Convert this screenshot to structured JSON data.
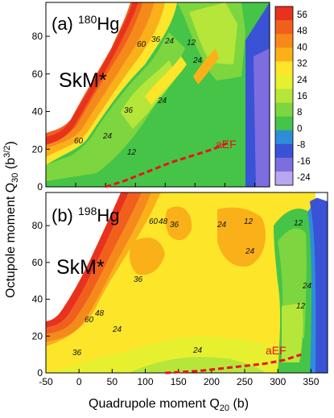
{
  "chart_data": {
    "type": "heatmap",
    "xlabel": "Quadrupole moment  Q20 (b)",
    "ylabel": "Octupole moment  Q30 (b3/2)",
    "x_ticks": [
      "-50",
      "0",
      "50",
      "100",
      "150",
      "200",
      "250",
      "300",
      "350"
    ],
    "xlim": [
      -50,
      375
    ],
    "colorbar": {
      "ticks": [
        "56",
        "48",
        "40",
        "32",
        "24",
        "16",
        "8",
        "0",
        "-8",
        "-16",
        "-24"
      ],
      "colors": [
        "#e8321e",
        "#f0601c",
        "#f58a1a",
        "#fab018",
        "#fde52a",
        "#e7f02f",
        "#b6e63a",
        "#7dd63f",
        "#45c447",
        "#2e8dd8",
        "#3a52d6",
        "#7d6ee0",
        "#b9a6f0"
      ]
    },
    "panels": [
      {
        "id": "a",
        "label_prefix": "(a) ",
        "mass": "180",
        "element": "Hg",
        "model": "SkM*",
        "y_ticks": [
          "0",
          "20",
          "40",
          "60",
          "80"
        ],
        "ylim": [
          0,
          98
        ],
        "contour_labels": [
          "60",
          "36",
          "24",
          "12",
          "24",
          "36",
          "24",
          "60",
          "24",
          "12"
        ],
        "path_label": "aEF",
        "path": {
          "x": [
            50,
            80,
            120,
            160,
            200,
            230,
            260
          ],
          "y": [
            0,
            3,
            8,
            13,
            17,
            20,
            24
          ]
        }
      },
      {
        "id": "b",
        "label_prefix": "(b) ",
        "mass": "198",
        "element": "Hg",
        "model": "SkM*",
        "y_ticks": [
          "0",
          "20",
          "40",
          "60",
          "80"
        ],
        "ylim": [
          0,
          98
        ],
        "contour_labels": [
          "60",
          "48",
          "36",
          "24",
          "12",
          "12",
          "24",
          "36",
          "60",
          "48",
          "24",
          "24",
          "36",
          "24",
          "12"
        ],
        "path_label": "aEF",
        "path": {
          "x": [
            130,
            180,
            230,
            280,
            310,
            335
          ],
          "y": [
            0,
            1,
            3,
            5,
            7,
            10
          ]
        }
      }
    ],
    "ylabel_main": "Octupole moment",
    "ylabel_sym": "Q",
    "ylabel_sub": "30",
    "ylabel_unit_pre": " (b",
    "ylabel_unit_sup": "3/2",
    "ylabel_unit_post": ")",
    "xlabel_main": "Quadrupole moment ",
    "xlabel_sym": "Q",
    "xlabel_sub": "20",
    "xlabel_unit": " (b)"
  }
}
